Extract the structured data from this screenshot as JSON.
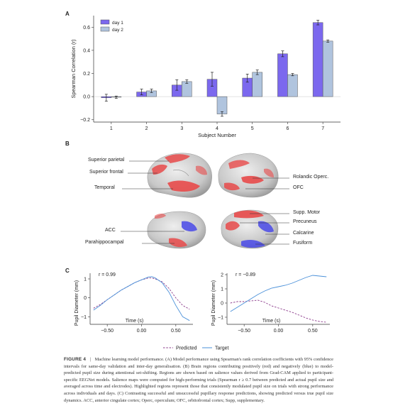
{
  "panel_a": {
    "letter": "A",
    "chart_data": {
      "type": "bar",
      "categories": [
        "1",
        "2",
        "3",
        "4",
        "5",
        "6",
        "7"
      ],
      "series": [
        {
          "name": "day 1",
          "values": [
            -0.01,
            0.04,
            0.1,
            0.15,
            0.16,
            0.37,
            0.64
          ],
          "err": [
            0.03,
            0.025,
            0.045,
            0.06,
            0.035,
            0.025,
            0.02
          ],
          "color": "#7B68EE"
        },
        {
          "name": "day 2",
          "values": [
            -0.005,
            0.05,
            0.13,
            -0.15,
            0.21,
            0.19,
            0.48
          ],
          "err": [
            0.01,
            0.015,
            0.015,
            0.02,
            0.02,
            0.01,
            0.01
          ],
          "color": "#B0C4DE"
        }
      ],
      "xlabel": "Subject Number",
      "ylabel": "Spearman Correlation (r)",
      "ylim": [
        -0.22,
        0.7
      ],
      "yticks": [
        -0.2,
        0.0,
        0.2,
        0.4,
        0.6
      ],
      "ytick_labels": [
        "−0.2",
        "0.0",
        "0.2",
        "0.4",
        "0.6"
      ],
      "legend": "top-left"
    }
  },
  "panel_b": {
    "letter": "B",
    "labels_left_top": [
      "Superior parietal",
      "Superior frontal",
      "Temporal"
    ],
    "labels_right_top": [
      "Rolandic Operc.",
      "OFC"
    ],
    "labels_left_bottom": [
      "ACC",
      "Parahippocampal"
    ],
    "labels_right_bottom": [
      "Supp. Motor",
      "Precuneus",
      "Calcarine",
      "Fusiform"
    ]
  },
  "panel_c": {
    "letter": "C",
    "chart_data": [
      {
        "type": "line",
        "annotation": "r = 0.99",
        "xlabel": "Time (s)",
        "ylabel": "Pupil Diameter (mm)",
        "xlim": [
          -0.75,
          0.75
        ],
        "ylim": [
          -1.4,
          1.3
        ],
        "xticks": [
          -0.5,
          0.0,
          0.5
        ],
        "xtick_labels": [
          "−0.50",
          "0.00",
          "0.50"
        ],
        "yticks": [
          -1,
          0,
          1
        ],
        "ytick_labels": [
          "−1",
          "0",
          "1"
        ],
        "series": [
          {
            "name": "Predicted",
            "style": "dashed",
            "color": "#8B3A8B",
            "x": [
              -0.7,
              -0.6,
              -0.5,
              -0.4,
              -0.3,
              -0.2,
              -0.1,
              0.0,
              0.1,
              0.15,
              0.2,
              0.3,
              0.4,
              0.5,
              0.6,
              0.7
            ],
            "y": [
              -0.55,
              -0.35,
              -0.1,
              0.15,
              0.4,
              0.6,
              0.8,
              0.95,
              1.05,
              1.05,
              1.0,
              0.85,
              0.5,
              0.0,
              -0.4,
              -0.6
            ]
          },
          {
            "name": "Target",
            "style": "solid",
            "color": "#4A90D9",
            "x": [
              -0.7,
              -0.6,
              -0.5,
              -0.4,
              -0.3,
              -0.2,
              -0.1,
              0.0,
              0.1,
              0.15,
              0.2,
              0.3,
              0.4,
              0.5,
              0.6,
              0.7
            ],
            "y": [
              -0.65,
              -0.4,
              -0.1,
              0.15,
              0.4,
              0.6,
              0.8,
              0.95,
              1.1,
              1.12,
              1.05,
              0.8,
              0.3,
              -0.4,
              -1.0,
              -1.2
            ]
          }
        ]
      },
      {
        "type": "line",
        "annotation": "r = −0.89",
        "xlabel": "Time (s)",
        "ylabel": "Pupil Diameter (mm)",
        "xlim": [
          -0.75,
          0.75
        ],
        "ylim": [
          -1.5,
          2.1
        ],
        "xticks": [
          -0.5,
          0.0,
          0.5
        ],
        "xtick_labels": [
          "−0.50",
          "0.00",
          "0.50"
        ],
        "yticks": [
          -1,
          0,
          1,
          2
        ],
        "ytick_labels": [
          "−1",
          "0",
          "1",
          "2"
        ],
        "series": [
          {
            "name": "Predicted",
            "style": "dashed",
            "color": "#8B3A8B",
            "x": [
              -0.7,
              -0.6,
              -0.5,
              -0.4,
              -0.3,
              -0.2,
              -0.1,
              0.0,
              0.1,
              0.2,
              0.3,
              0.4,
              0.5,
              0.6,
              0.7
            ],
            "y": [
              0.0,
              0.1,
              0.1,
              0.15,
              0.2,
              0.05,
              -0.2,
              -0.35,
              -0.5,
              -0.65,
              -0.85,
              -1.05,
              -1.2,
              -1.3,
              -1.35
            ]
          },
          {
            "name": "Target",
            "style": "solid",
            "color": "#4A90D9",
            "x": [
              -0.7,
              -0.6,
              -0.5,
              -0.4,
              -0.3,
              -0.2,
              -0.1,
              0.0,
              0.1,
              0.2,
              0.3,
              0.4,
              0.5,
              0.6,
              0.7
            ],
            "y": [
              -0.6,
              -0.3,
              0.0,
              0.3,
              0.6,
              0.85,
              1.05,
              1.15,
              1.25,
              1.4,
              1.6,
              1.8,
              1.95,
              1.9,
              1.85
            ]
          }
        ]
      }
    ],
    "legend": [
      "Predicted",
      "Target"
    ]
  },
  "caption": {
    "label": "FIGURE 4",
    "separator": "|",
    "text": "Machine learning model performance. (A) Model performance using Spearman's rank correlation coefficients with 95% confidence intervals for same-day validation and inter-day generalisation. (B) Brain regions contributing positively (red) and negatively (blue) to model-predicted pupil size during attentional set-shifting. Regions are shown based on salience values derived from Grad-CAM applied to participant-specific EEGNet models. Salience maps were computed for high-performing trials (Spearman r ≥ 0.7 between predicted and actual pupil size and averaged across time and electrodes). Highlighted regions represent those that consistently modulated pupil size on trials with strong performance across individuals and days. (C) Contrasting successful and unsuccessful pupillary response predictions, showing predicted versus true pupil size dynamics. ACC, anterior cingulate cortex; Operc, operculum; OFC, orbitofrontal cortex; Supp, supplementary."
  }
}
